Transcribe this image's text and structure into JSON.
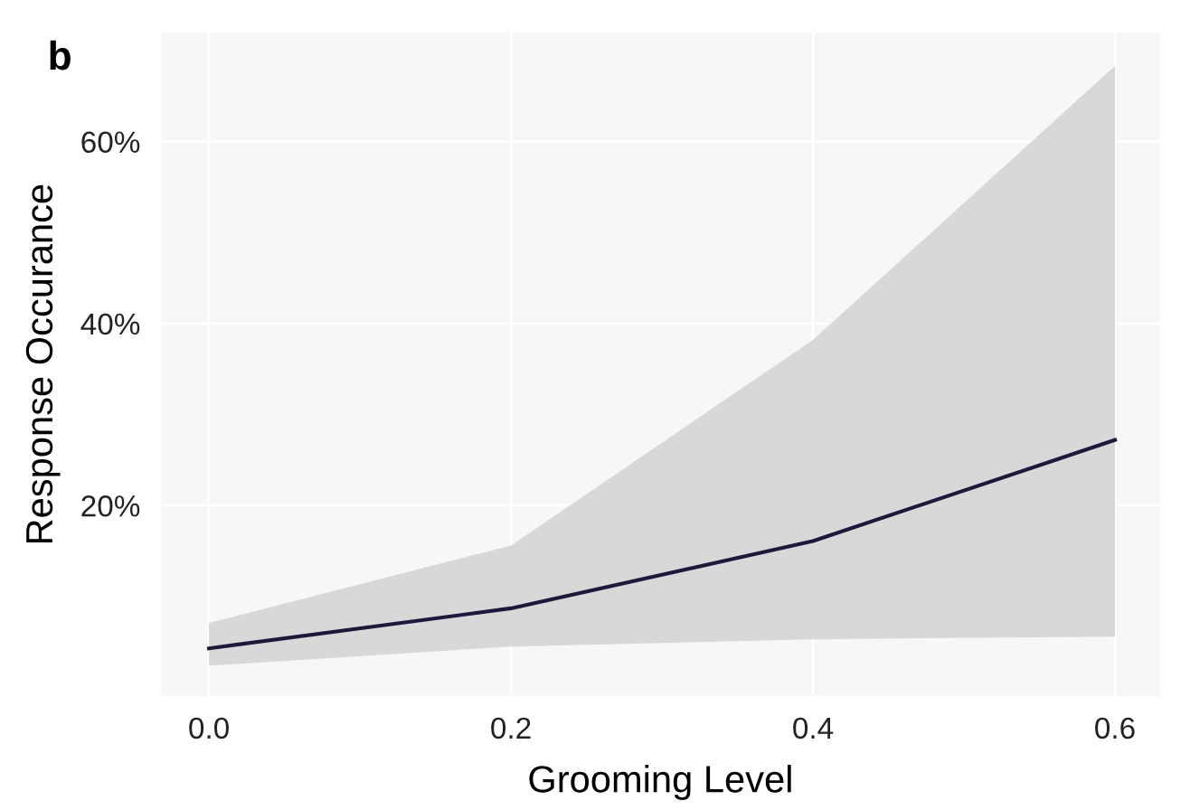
{
  "chart_data": {
    "type": "line",
    "xlabel": "Grooming Level",
    "ylabel": "Response Occurance",
    "annotations": [
      "b"
    ],
    "x": [
      0.0,
      0.2,
      0.4,
      0.6
    ],
    "series": [
      {
        "color": "#1c1a3a",
        "values": [
          4.3,
          8.7,
          16.1,
          27.2
        ],
        "lower": [
          2.4,
          4.5,
          5.3,
          5.6
        ],
        "upper": [
          7.1,
          15.6,
          38.2,
          68.3
        ]
      }
    ],
    "xlim": [
      -0.032,
      0.63
    ],
    "ylim": [
      -1,
      72
    ],
    "xticks": [
      {
        "value": 0.0,
        "label": "0.0"
      },
      0.2,
      0.4,
      0.6
    ],
    "yticks": [
      {
        "value": 20,
        "label": "20%"
      },
      {
        "value": 40,
        "label": "40%"
      },
      {
        "value": 60,
        "label": "60%"
      }
    ],
    "grid": true,
    "line_style": "solid",
    "marker": "none"
  }
}
